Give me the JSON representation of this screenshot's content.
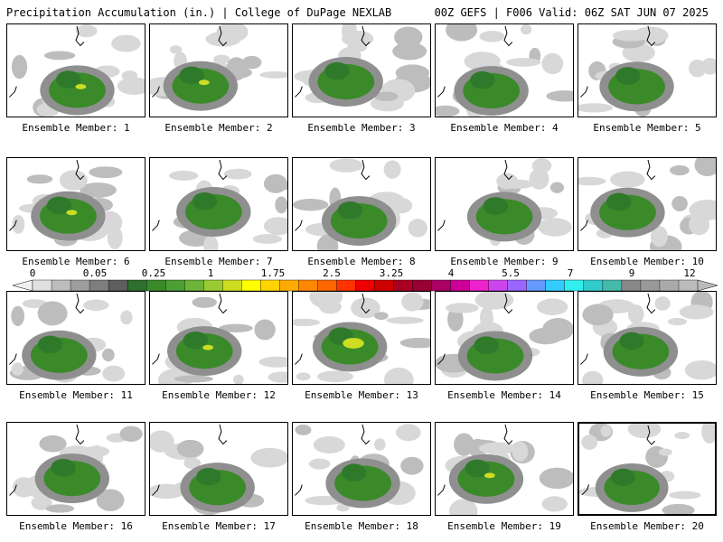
{
  "header": {
    "left": "Precipitation Accumulation (in.) | College of DuPage NEXLAB",
    "right": "00Z GEFS | F006 Valid: 06Z SAT JUN 07 2025"
  },
  "member_label_prefix": "Ensemble Member: ",
  "members": [
    {
      "id": 1,
      "label": "Ensemble Member: 1"
    },
    {
      "id": 2,
      "label": "Ensemble Member: 2"
    },
    {
      "id": 3,
      "label": "Ensemble Member: 3"
    },
    {
      "id": 4,
      "label": "Ensemble Member: 4"
    },
    {
      "id": 5,
      "label": "Ensemble Member: 5"
    },
    {
      "id": 6,
      "label": "Ensemble Member: 6"
    },
    {
      "id": 7,
      "label": "Ensemble Member: 7"
    },
    {
      "id": 8,
      "label": "Ensemble Member: 8"
    },
    {
      "id": 9,
      "label": "Ensemble Member: 9"
    },
    {
      "id": 10,
      "label": "Ensemble Member: 10"
    },
    {
      "id": 11,
      "label": "Ensemble Member: 11"
    },
    {
      "id": 12,
      "label": "Ensemble Member: 12"
    },
    {
      "id": 13,
      "label": "Ensemble Member: 13"
    },
    {
      "id": 14,
      "label": "Ensemble Member: 14"
    },
    {
      "id": 15,
      "label": "Ensemble Member: 15"
    },
    {
      "id": 16,
      "label": "Ensemble Member: 16"
    },
    {
      "id": 17,
      "label": "Ensemble Member: 17"
    },
    {
      "id": 18,
      "label": "Ensemble Member: 18"
    },
    {
      "id": 19,
      "label": "Ensemble Member: 19"
    },
    {
      "id": 20,
      "label": "Ensemble Member: 20",
      "selected": true
    }
  ],
  "colorbar": {
    "tick_labels": [
      "0",
      "0.05",
      "0.25",
      "1",
      "1.75",
      "2.5",
      "3.25",
      "4",
      "5.5",
      "7",
      "9",
      "12"
    ],
    "colors": [
      "#e0e0e0",
      "#bdbdbd",
      "#9e9e9e",
      "#7e7e7e",
      "#5e5e5e",
      "#2f6f2f",
      "#3a8a2a",
      "#4aa032",
      "#6cb43a",
      "#99cc33",
      "#ccdd22",
      "#ffff00",
      "#ffd400",
      "#ffaa00",
      "#ff8800",
      "#ff6600",
      "#ff3300",
      "#ee0000",
      "#cc0000",
      "#aa0022",
      "#990033",
      "#aa0066",
      "#cc0099",
      "#ee22cc",
      "#cc44ee",
      "#9966ff",
      "#6699ff",
      "#33ccff",
      "#33eeee",
      "#33cccc",
      "#44bbaa",
      "#888888",
      "#999999",
      "#aaaaaa",
      "#bbbbbb"
    ]
  }
}
